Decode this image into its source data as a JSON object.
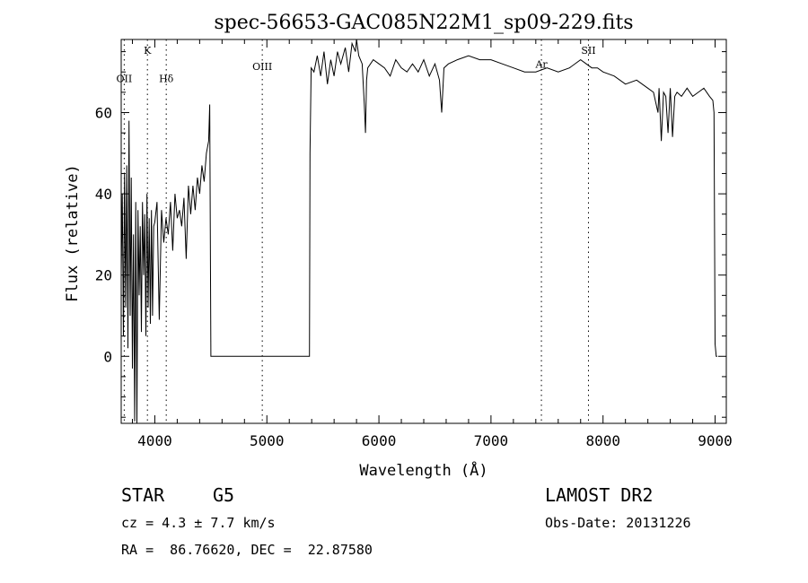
{
  "chart_data": {
    "type": "line",
    "title": "spec-56653-GAC085N22M1_sp09-229.fits",
    "xlabel": "Wavelength (Å)",
    "ylabel": "Flux (relative)",
    "xlim": [
      3700,
      9100
    ],
    "ylim": [
      -16.5,
      78
    ],
    "xticks": [
      4000,
      5000,
      6000,
      7000,
      8000,
      9000
    ],
    "yticks": [
      0,
      20,
      40,
      60
    ],
    "grid": false,
    "lines": [
      {
        "label": "OII",
        "x": 3727,
        "label_y": 67.5
      },
      {
        "label": "K",
        "x": 3934,
        "label_y": 74.5
      },
      {
        "label": "Hδ",
        "x": 4102,
        "label_y": 67.5
      },
      {
        "label": "OIII",
        "x": 4959,
        "label_y": 70.5
      },
      {
        "label": "Ar",
        "x": 7450,
        "label_y": 71
      },
      {
        "label": "SII",
        "x": 7870,
        "label_y": 74.5
      }
    ],
    "series": [
      {
        "x": [
          3700,
          3710,
          3720,
          3730,
          3740,
          3750,
          3760,
          3770,
          3780,
          3790,
          3800,
          3810,
          3820,
          3830,
          3840,
          3850,
          3860,
          3870,
          3880,
          3890,
          3900,
          3910,
          3920,
          3930,
          3940,
          3950,
          3960,
          3970,
          3980,
          3990,
          4000,
          4020,
          4040,
          4060,
          4080,
          4100,
          4120,
          4140,
          4160,
          4180,
          4200,
          4220,
          4240,
          4260,
          4280,
          4300,
          4320,
          4340,
          4360,
          4380,
          4400,
          4420,
          4440,
          4460,
          4480,
          4490,
          4500,
          4510,
          4530,
          4550,
          5300,
          5380,
          5385,
          5395,
          5420,
          5450,
          5480,
          5510,
          5540,
          5570,
          5600,
          5630,
          5660,
          5700,
          5730,
          5760,
          5790,
          5800,
          5820,
          5850,
          5870,
          5880,
          5890,
          5900,
          5950,
          6000,
          6050,
          6100,
          6150,
          6200,
          6250,
          6300,
          6350,
          6400,
          6450,
          6500,
          6540,
          6560,
          6580,
          6620,
          6700,
          6800,
          6900,
          7000,
          7100,
          7200,
          7300,
          7400,
          7500,
          7600,
          7700,
          7800,
          7850,
          7900,
          7950,
          8000,
          8100,
          8200,
          8300,
          8400,
          8450,
          8490,
          8500,
          8520,
          8540,
          8560,
          8580,
          8600,
          8620,
          8640,
          8660,
          8700,
          8750,
          8800,
          8850,
          8900,
          8950,
          8980,
          8990,
          9000,
          9010,
          9020
        ],
        "y": [
          20,
          40,
          5,
          45,
          12,
          47,
          2,
          58,
          10,
          44,
          -3,
          30,
          -16,
          38,
          -17,
          36,
          15,
          32,
          6,
          38,
          20,
          35,
          5,
          40,
          12,
          34,
          8,
          36,
          10,
          32,
          33,
          38,
          9,
          36,
          28,
          34,
          30,
          38,
          26,
          40,
          34,
          36,
          32,
          39,
          24,
          42,
          35,
          42,
          36,
          44,
          40,
          47,
          43,
          50,
          53,
          62,
          0,
          0,
          0,
          0,
          0,
          0,
          50,
          71,
          70,
          74,
          69,
          75,
          67,
          73,
          69,
          75,
          72,
          76,
          70,
          77,
          75,
          78,
          74,
          72,
          62,
          55,
          68,
          71,
          73,
          72,
          71,
          69,
          73,
          71,
          70,
          72,
          70,
          73,
          69,
          72,
          68,
          60,
          71,
          72,
          73,
          74,
          73,
          73,
          72,
          71,
          70,
          70,
          71,
          70,
          71,
          73,
          72,
          71,
          71,
          70,
          69,
          67,
          68,
          66,
          65,
          60,
          66,
          53,
          65,
          64,
          55,
          66,
          54,
          64,
          65,
          64,
          66,
          64,
          65,
          66,
          64,
          63,
          60,
          3,
          0,
          0
        ]
      }
    ]
  },
  "info": {
    "object_class": "STAR",
    "subclass": "G5",
    "survey": "LAMOST DR2",
    "cz": "cz = 4.3 ± 7.7 km/s",
    "obs_date": "Obs-Date: 20131226",
    "coords": "RA =  86.76620, DEC =  22.87580"
  }
}
